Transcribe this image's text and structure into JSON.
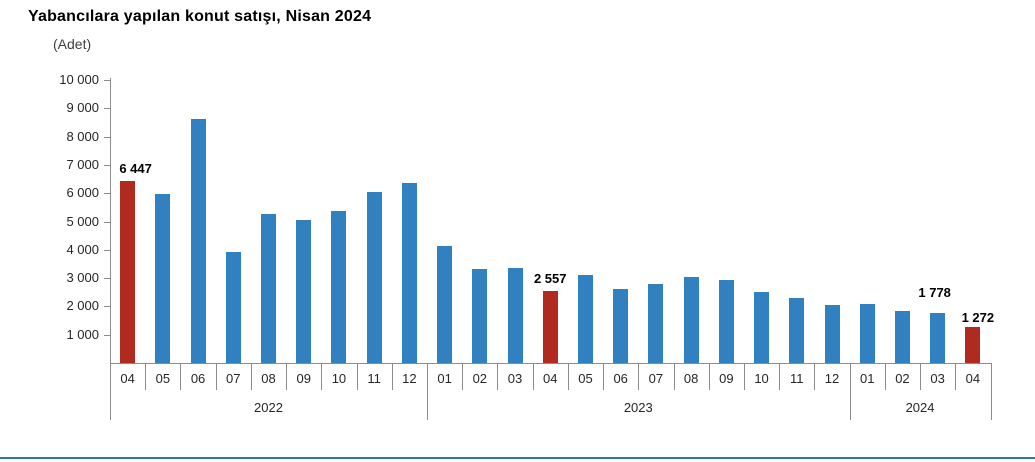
{
  "title": "Yabancılara yapılan konut satışı, Nisan 2024",
  "subtitle": "(Adet)",
  "colors": {
    "bar_blue": "#3180c0",
    "bar_red": "#b02a1f",
    "axis_gray": "#8c8c8c",
    "bottom_rule_blue": "#2e74b5"
  },
  "chart_data": {
    "type": "bar",
    "title": "Yabancılara yapılan konut satışı, Nisan 2024",
    "unit_label": "(Adet)",
    "xlabel": "",
    "ylabel": "",
    "ylim": [
      0,
      10000
    ],
    "ytick_interval": 1000,
    "ytick_labels": [
      "1 000",
      "2 000",
      "3 000",
      "4 000",
      "5 000",
      "6 000",
      "7 000",
      "8 000",
      "9 000",
      "10 000"
    ],
    "grid": false,
    "legend": "none",
    "highlight_note": "April (Nisan) bars shown in red",
    "bars": [
      {
        "year": "2022",
        "month": "04",
        "value": 6447,
        "highlight": true,
        "label": "6 447",
        "label_dx": 8,
        "label_dy": 0
      },
      {
        "year": "2022",
        "month": "05",
        "value": 5962,
        "highlight": false
      },
      {
        "year": "2022",
        "month": "06",
        "value": 8630,
        "highlight": false
      },
      {
        "year": "2022",
        "month": "07",
        "value": 3910,
        "highlight": false
      },
      {
        "year": "2022",
        "month": "08",
        "value": 5280,
        "highlight": false
      },
      {
        "year": "2022",
        "month": "09",
        "value": 5060,
        "highlight": false
      },
      {
        "year": "2022",
        "month": "10",
        "value": 5380,
        "highlight": false
      },
      {
        "year": "2022",
        "month": "11",
        "value": 6060,
        "highlight": false
      },
      {
        "year": "2022",
        "month": "12",
        "value": 6350,
        "highlight": false
      },
      {
        "year": "2023",
        "month": "01",
        "value": 4150,
        "highlight": false
      },
      {
        "year": "2023",
        "month": "02",
        "value": 3330,
        "highlight": false
      },
      {
        "year": "2023",
        "month": "03",
        "value": 3360,
        "highlight": false
      },
      {
        "year": "2023",
        "month": "04",
        "value": 2557,
        "highlight": true,
        "label": "2 557",
        "label_dx": 0,
        "label_dy": 0
      },
      {
        "year": "2023",
        "month": "05",
        "value": 3110,
        "highlight": false
      },
      {
        "year": "2023",
        "month": "06",
        "value": 2600,
        "highlight": false
      },
      {
        "year": "2023",
        "month": "07",
        "value": 2780,
        "highlight": false
      },
      {
        "year": "2023",
        "month": "08",
        "value": 3030,
        "highlight": false
      },
      {
        "year": "2023",
        "month": "09",
        "value": 2940,
        "highlight": false
      },
      {
        "year": "2023",
        "month": "10",
        "value": 2520,
        "highlight": false
      },
      {
        "year": "2023",
        "month": "11",
        "value": 2300,
        "highlight": false
      },
      {
        "year": "2023",
        "month": "12",
        "value": 2060,
        "highlight": false
      },
      {
        "year": "2024",
        "month": "01",
        "value": 2080,
        "highlight": false
      },
      {
        "year": "2024",
        "month": "02",
        "value": 1820,
        "highlight": false
      },
      {
        "year": "2024",
        "month": "03",
        "value": 1778,
        "highlight": false,
        "label": "1 778",
        "label_dx": -3,
        "label_dy": -8
      },
      {
        "year": "2024",
        "month": "04",
        "value": 1272,
        "highlight": true,
        "label": "1 272",
        "label_dx": 5,
        "label_dy": 3
      }
    ],
    "year_groups": [
      "2022",
      "2023",
      "2024"
    ]
  }
}
